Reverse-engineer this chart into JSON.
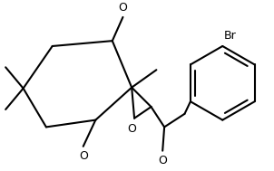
{
  "background": "#ffffff",
  "line_color": "#000000",
  "lw": 1.5,
  "fs": 9,
  "figsize": [
    3.02,
    1.89
  ],
  "dpi": 100,
  "xlim": [
    0,
    302
  ],
  "ylim": [
    0,
    189
  ]
}
